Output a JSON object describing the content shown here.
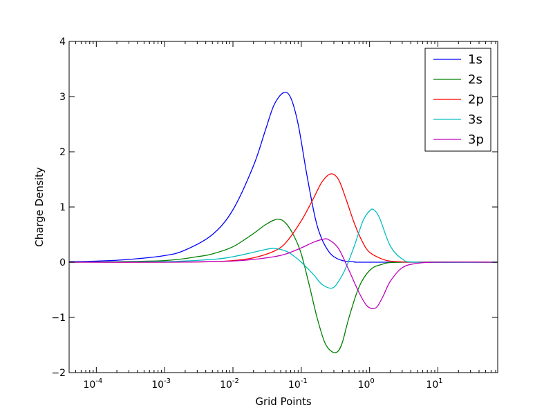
{
  "chart_data": {
    "type": "line",
    "title": "",
    "xlabel": "Grid Points",
    "ylabel": "Charge Density",
    "xscale": "log",
    "xlim": [
      4e-05,
      75
    ],
    "ylim": [
      -2,
      4
    ],
    "x_ticks": [
      {
        "value": 0.0001,
        "base": "10",
        "exp": "-4"
      },
      {
        "value": 0.001,
        "base": "10",
        "exp": "-3"
      },
      {
        "value": 0.01,
        "base": "10",
        "exp": "-2"
      },
      {
        "value": 0.1,
        "base": "10",
        "exp": "-1"
      },
      {
        "value": 1,
        "base": "10",
        "exp": "0"
      },
      {
        "value": 10,
        "base": "10",
        "exp": "1"
      }
    ],
    "y_ticks": [
      {
        "value": -2,
        "label": "−2"
      },
      {
        "value": -1,
        "label": "−1"
      },
      {
        "value": 0,
        "label": "0"
      },
      {
        "value": 1,
        "label": "1"
      },
      {
        "value": 2,
        "label": "2"
      },
      {
        "value": 3,
        "label": "3"
      },
      {
        "value": 4,
        "label": "4"
      }
    ],
    "grid": false,
    "legend_position": "top-right",
    "series": [
      {
        "name": "1s",
        "color": "#0000ff",
        "x": [
          4e-05,
          0.0001,
          0.0003,
          0.001,
          0.002,
          0.005,
          0.01,
          0.02,
          0.03,
          0.04,
          0.055,
          0.07,
          0.09,
          0.12,
          0.16,
          0.2,
          0.25,
          0.3,
          0.4,
          0.6,
          1,
          75
        ],
        "y": [
          0.01,
          0.02,
          0.05,
          0.12,
          0.22,
          0.5,
          0.95,
          1.75,
          2.4,
          2.85,
          3.07,
          2.98,
          2.5,
          1.6,
          0.8,
          0.42,
          0.2,
          0.1,
          0.03,
          0.005,
          0,
          0
        ]
      },
      {
        "name": "2s",
        "color": "#008000",
        "x": [
          4e-05,
          0.0001,
          0.001,
          0.003,
          0.005,
          0.01,
          0.02,
          0.03,
          0.045,
          0.06,
          0.08,
          0.1,
          0.13,
          0.17,
          0.22,
          0.28,
          0.34,
          0.4,
          0.5,
          0.7,
          1,
          1.5,
          3,
          75
        ],
        "y": [
          0,
          0.005,
          0.03,
          0.1,
          0.15,
          0.28,
          0.52,
          0.68,
          0.78,
          0.7,
          0.45,
          0.15,
          -0.4,
          -1.0,
          -1.45,
          -1.62,
          -1.62,
          -1.45,
          -1.0,
          -0.45,
          -0.15,
          -0.04,
          0,
          0
        ]
      },
      {
        "name": "2p",
        "color": "#ff0000",
        "x": [
          4e-05,
          0.001,
          0.005,
          0.01,
          0.02,
          0.04,
          0.06,
          0.1,
          0.15,
          0.2,
          0.27,
          0.35,
          0.45,
          0.6,
          0.8,
          1,
          1.5,
          2,
          3,
          5,
          75
        ],
        "y": [
          0,
          0.0,
          0.01,
          0.03,
          0.08,
          0.2,
          0.36,
          0.75,
          1.15,
          1.45,
          1.6,
          1.5,
          1.15,
          0.7,
          0.35,
          0.18,
          0.06,
          0.02,
          0.005,
          0,
          0
        ]
      },
      {
        "name": "3s",
        "color": "#00bfbf",
        "x": [
          4e-05,
          0.001,
          0.005,
          0.01,
          0.02,
          0.03,
          0.04,
          0.06,
          0.08,
          0.1,
          0.15,
          0.2,
          0.28,
          0.35,
          0.45,
          0.6,
          0.8,
          1.0,
          1.15,
          1.4,
          2,
          3,
          5,
          75
        ],
        "y": [
          0,
          0.01,
          0.05,
          0.1,
          0.18,
          0.23,
          0.25,
          0.2,
          0.1,
          0.0,
          -0.22,
          -0.4,
          -0.47,
          -0.35,
          -0.1,
          0.3,
          0.75,
          0.93,
          0.95,
          0.8,
          0.3,
          0.06,
          0.0,
          0
        ]
      },
      {
        "name": "3p",
        "color": "#bf00bf",
        "x": [
          4e-05,
          0.001,
          0.005,
          0.01,
          0.02,
          0.04,
          0.06,
          0.1,
          0.15,
          0.2,
          0.25,
          0.35,
          0.5,
          0.7,
          0.9,
          1.1,
          1.3,
          1.6,
          2,
          3,
          5,
          10,
          75
        ],
        "y": [
          0,
          0.0,
          0.01,
          0.02,
          0.05,
          0.1,
          0.15,
          0.26,
          0.36,
          0.41,
          0.41,
          0.25,
          -0.15,
          -0.55,
          -0.78,
          -0.84,
          -0.8,
          -0.6,
          -0.35,
          -0.1,
          -0.02,
          0,
          0
        ]
      }
    ]
  }
}
